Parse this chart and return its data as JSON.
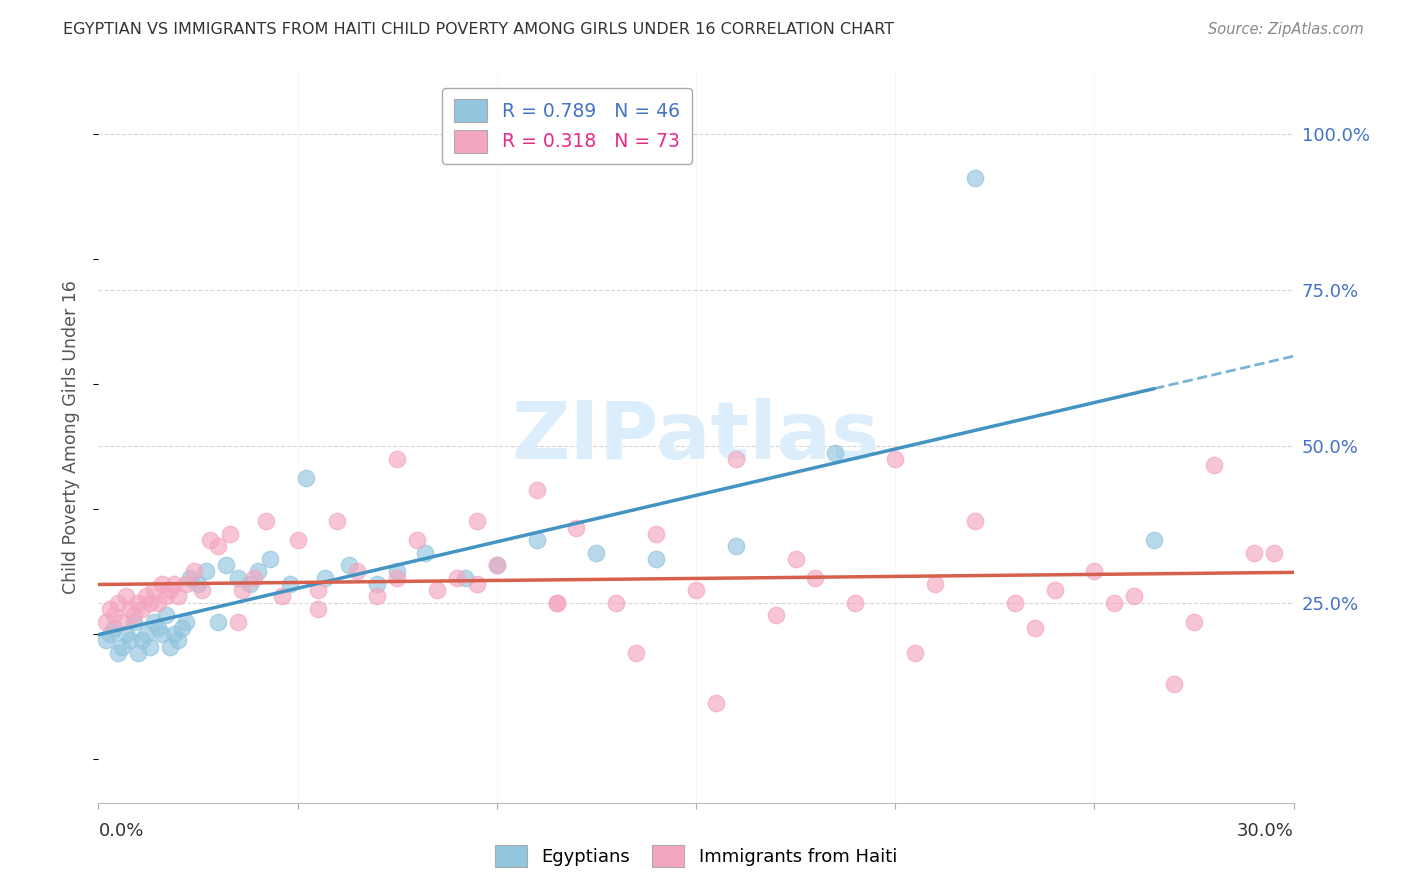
{
  "title": "EGYPTIAN VS IMMIGRANTS FROM HAITI CHILD POVERTY AMONG GIRLS UNDER 16 CORRELATION CHART",
  "source": "Source: ZipAtlas.com",
  "ylabel": "Child Poverty Among Girls Under 16",
  "ytick_labels": [
    "100.0%",
    "75.0%",
    "50.0%",
    "25.0%"
  ],
  "ytick_values": [
    1.0,
    0.75,
    0.5,
    0.25
  ],
  "xmin": 0.0,
  "xmax": 0.3,
  "ymin": -0.07,
  "ymax": 1.1,
  "legend_r1": "R = 0.789   N = 46",
  "legend_r2": "R = 0.318   N = 73",
  "blue_color": "#92c5de",
  "pink_color": "#f4a6c0",
  "trend_blue_solid": "#4393c3",
  "trend_blue_dash": "#4393c3",
  "trend_pink": "#d6604d",
  "grid_color": "#cccccc",
  "background_color": "#ffffff",
  "legend_text_blue": "#4472c4",
  "legend_text_pink": "#e7298a",
  "watermark_color": "#dceefb",
  "egyptians_x": [
    0.002,
    0.003,
    0.004,
    0.005,
    0.006,
    0.007,
    0.008,
    0.009,
    0.01,
    0.011,
    0.012,
    0.013,
    0.014,
    0.015,
    0.016,
    0.017,
    0.018,
    0.019,
    0.02,
    0.021,
    0.022,
    0.023,
    0.025,
    0.027,
    0.03,
    0.032,
    0.035,
    0.038,
    0.04,
    0.043,
    0.048,
    0.052,
    0.057,
    0.063,
    0.07,
    0.075,
    0.082,
    0.092,
    0.1,
    0.11,
    0.125,
    0.14,
    0.16,
    0.185,
    0.22,
    0.265
  ],
  "egyptians_y": [
    0.19,
    0.2,
    0.21,
    0.17,
    0.18,
    0.2,
    0.19,
    0.22,
    0.17,
    0.19,
    0.2,
    0.18,
    0.22,
    0.21,
    0.2,
    0.23,
    0.18,
    0.2,
    0.19,
    0.21,
    0.22,
    0.29,
    0.28,
    0.3,
    0.22,
    0.31,
    0.29,
    0.28,
    0.3,
    0.32,
    0.28,
    0.45,
    0.29,
    0.31,
    0.28,
    0.3,
    0.33,
    0.29,
    0.31,
    0.35,
    0.33,
    0.32,
    0.34,
    0.49,
    0.93,
    0.35
  ],
  "haiti_x": [
    0.002,
    0.003,
    0.004,
    0.005,
    0.006,
    0.007,
    0.008,
    0.009,
    0.01,
    0.011,
    0.012,
    0.013,
    0.014,
    0.015,
    0.016,
    0.017,
    0.018,
    0.019,
    0.02,
    0.022,
    0.024,
    0.026,
    0.028,
    0.03,
    0.033,
    0.036,
    0.039,
    0.042,
    0.046,
    0.05,
    0.055,
    0.06,
    0.065,
    0.07,
    0.075,
    0.08,
    0.085,
    0.09,
    0.095,
    0.1,
    0.11,
    0.115,
    0.12,
    0.13,
    0.14,
    0.15,
    0.16,
    0.17,
    0.18,
    0.19,
    0.2,
    0.21,
    0.22,
    0.23,
    0.24,
    0.25,
    0.26,
    0.27,
    0.28,
    0.29,
    0.035,
    0.055,
    0.075,
    0.095,
    0.115,
    0.135,
    0.155,
    0.175,
    0.205,
    0.235,
    0.255,
    0.275,
    0.295
  ],
  "haiti_y": [
    0.22,
    0.24,
    0.23,
    0.25,
    0.22,
    0.26,
    0.24,
    0.23,
    0.25,
    0.24,
    0.26,
    0.25,
    0.27,
    0.25,
    0.28,
    0.26,
    0.27,
    0.28,
    0.26,
    0.28,
    0.3,
    0.27,
    0.35,
    0.34,
    0.36,
    0.27,
    0.29,
    0.38,
    0.26,
    0.35,
    0.27,
    0.38,
    0.3,
    0.26,
    0.29,
    0.35,
    0.27,
    0.29,
    0.38,
    0.31,
    0.43,
    0.25,
    0.37,
    0.25,
    0.36,
    0.27,
    0.48,
    0.23,
    0.29,
    0.25,
    0.48,
    0.28,
    0.38,
    0.25,
    0.27,
    0.3,
    0.26,
    0.12,
    0.47,
    0.33,
    0.22,
    0.24,
    0.48,
    0.28,
    0.25,
    0.17,
    0.09,
    0.32,
    0.17,
    0.21,
    0.25,
    0.22,
    0.33
  ]
}
